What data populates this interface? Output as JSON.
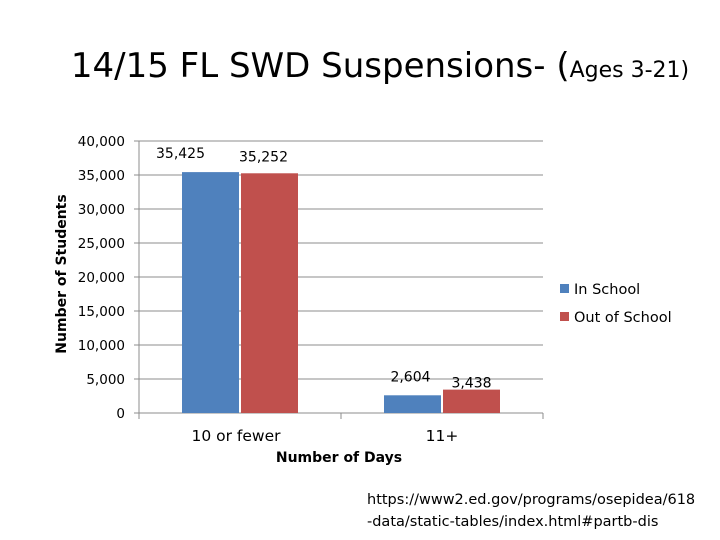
{
  "title": {
    "main": "14/15 FL SWD Suspensions- (",
    "ages": "Ages 3-21)"
  },
  "source_text": {
    "line1": "https://www2.ed.gov/programs/osepidea/618",
    "line2": "-data/static-tables/index.html#partb-dis"
  },
  "chart_data": {
    "type": "bar",
    "categories": [
      "10 or fewer",
      "11+"
    ],
    "series": [
      {
        "name": "In School",
        "values": [
          35425,
          2604
        ],
        "labels": [
          "35,425",
          "2,604"
        ],
        "color": "#4f81bd"
      },
      {
        "name": "Out of School",
        "values": [
          35252,
          3438
        ],
        "labels": [
          "35,252",
          "3,438"
        ],
        "color": "#c0504d"
      }
    ],
    "xlabel": "Number of Days",
    "ylabel": "Number of Students",
    "ylim": [
      0,
      40000
    ],
    "yticks": [
      0,
      5000,
      10000,
      15000,
      20000,
      25000,
      30000,
      35000,
      40000
    ],
    "ytick_labels": [
      "0",
      "5,000",
      "10,000",
      "15,000",
      "20,000",
      "25,000",
      "30,000",
      "35,000",
      "40,000"
    ],
    "grid": true,
    "legend": "right"
  }
}
